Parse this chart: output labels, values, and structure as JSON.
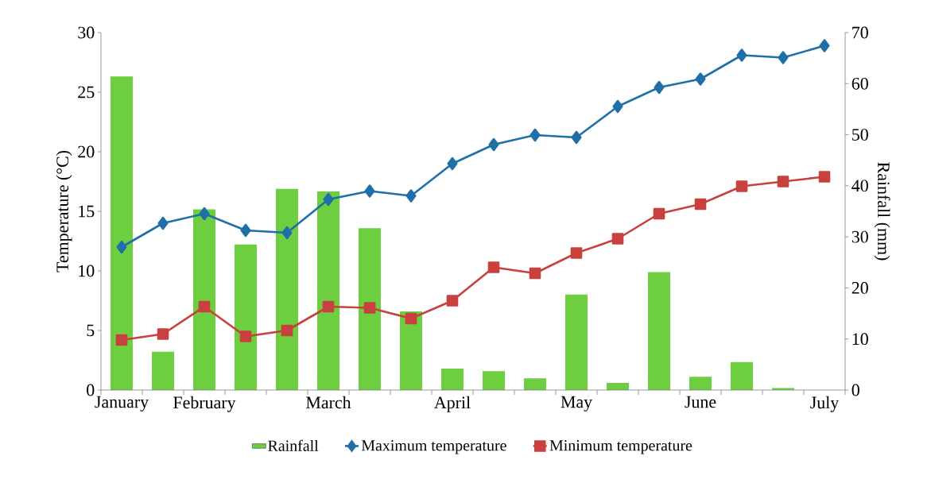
{
  "chart_data": {
    "type": "line",
    "categories": [
      "January",
      null,
      "February",
      null,
      null,
      "March",
      null,
      null,
      "April",
      null,
      null,
      "May",
      null,
      null,
      "June",
      null,
      null,
      "July"
    ],
    "ylabel": "Temperature (°C)",
    "y2label": "Rainfall (mm)",
    "ylim": [
      0,
      30
    ],
    "yticks": [
      0,
      5,
      10,
      15,
      20,
      25,
      30
    ],
    "y2lim": [
      0,
      70
    ],
    "y2ticks": [
      0,
      10,
      20,
      30,
      40,
      50,
      60,
      70
    ],
    "legend": "bottom",
    "series": [
      {
        "name": "Rainfall",
        "type": "bar",
        "axis": "y2",
        "color": "#6dcf3f",
        "values": [
          61.4,
          7.5,
          35.4,
          28.5,
          39.4,
          38.9,
          31.7,
          15.4,
          4.2,
          3.7,
          2.3,
          18.7,
          1.4,
          23.1,
          2.6,
          5.5,
          0.4,
          null
        ]
      },
      {
        "name": "Maximum temperature",
        "marker": "diamond",
        "color": "#1f6fa8",
        "values": [
          12.0,
          14.0,
          14.8,
          13.4,
          13.2,
          16.0,
          16.7,
          16.3,
          19.0,
          20.6,
          21.4,
          21.2,
          23.8,
          25.4,
          26.1,
          28.1,
          27.9,
          28.9
        ]
      },
      {
        "name": "Minimum temperature",
        "marker": "square",
        "color": "#c8413e",
        "values": [
          4.2,
          4.7,
          7.0,
          4.5,
          5.0,
          7.0,
          6.9,
          6.0,
          7.5,
          10.3,
          9.8,
          11.5,
          12.7,
          14.8,
          15.6,
          17.1,
          17.5,
          17.9
        ]
      }
    ]
  }
}
